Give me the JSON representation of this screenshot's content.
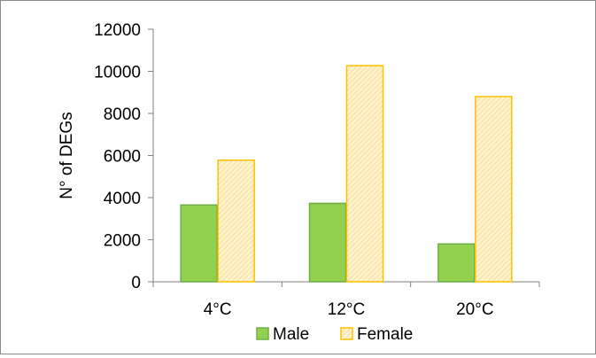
{
  "chart_data": {
    "type": "bar",
    "title": "",
    "xlabel": "",
    "ylabel": "N° of DEGs",
    "ylim": [
      0,
      12000
    ],
    "yticks": [
      0,
      2000,
      4000,
      6000,
      8000,
      10000,
      12000
    ],
    "categories": [
      "4°C",
      "12°C",
      "20°C"
    ],
    "series": [
      {
        "name": "Male",
        "values": [
          3650,
          3730,
          1800
        ],
        "color": "#92d050",
        "border": "#70ad47",
        "pattern": "solid"
      },
      {
        "name": "Female",
        "values": [
          5780,
          10270,
          8800
        ],
        "color": "#fff2cc",
        "border": "#ffc000",
        "pattern": "diagonal-hatch"
      }
    ],
    "grid": false,
    "legend_position": "bottom"
  }
}
